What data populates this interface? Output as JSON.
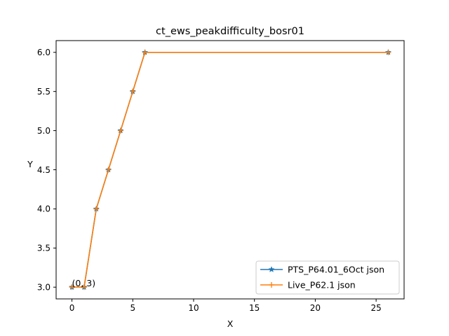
{
  "chart_data": {
    "type": "line",
    "title": "ct_ews_peakdifficulty_bosr01",
    "xlabel": "X",
    "ylabel": "Y",
    "xlim": [
      -1.3,
      27.3
    ],
    "ylim": [
      2.85,
      6.15
    ],
    "xticks": [
      0,
      5,
      10,
      15,
      20,
      25
    ],
    "yticks": [
      3.0,
      3.5,
      4.0,
      4.5,
      5.0,
      5.5,
      6.0
    ],
    "xtick_labels": [
      "0",
      "5",
      "10",
      "15",
      "20",
      "25"
    ],
    "ytick_labels": [
      "3.0",
      "3.5",
      "4.0",
      "4.5",
      "5.0",
      "5.5",
      "6.0"
    ],
    "grid": false,
    "legend_position": "lower-right",
    "series": [
      {
        "name": "PTS_P64.01_6Oct json",
        "color": "#1f77b4",
        "marker": "star",
        "x": [
          0,
          1,
          2,
          3,
          4,
          5,
          6,
          26
        ],
        "y": [
          3,
          3,
          4,
          4.5,
          5,
          5.5,
          6,
          6
        ]
      },
      {
        "name": "Live_P62.1 json",
        "color": "#ff7f0e",
        "marker": "plus",
        "x": [
          0,
          1,
          2,
          3,
          4,
          5,
          6,
          26
        ],
        "y": [
          3,
          3,
          4,
          4.5,
          5,
          5.5,
          6,
          6
        ]
      }
    ],
    "annotations": [
      {
        "text": "(0, 3)",
        "x": 0,
        "y": 3
      }
    ]
  }
}
